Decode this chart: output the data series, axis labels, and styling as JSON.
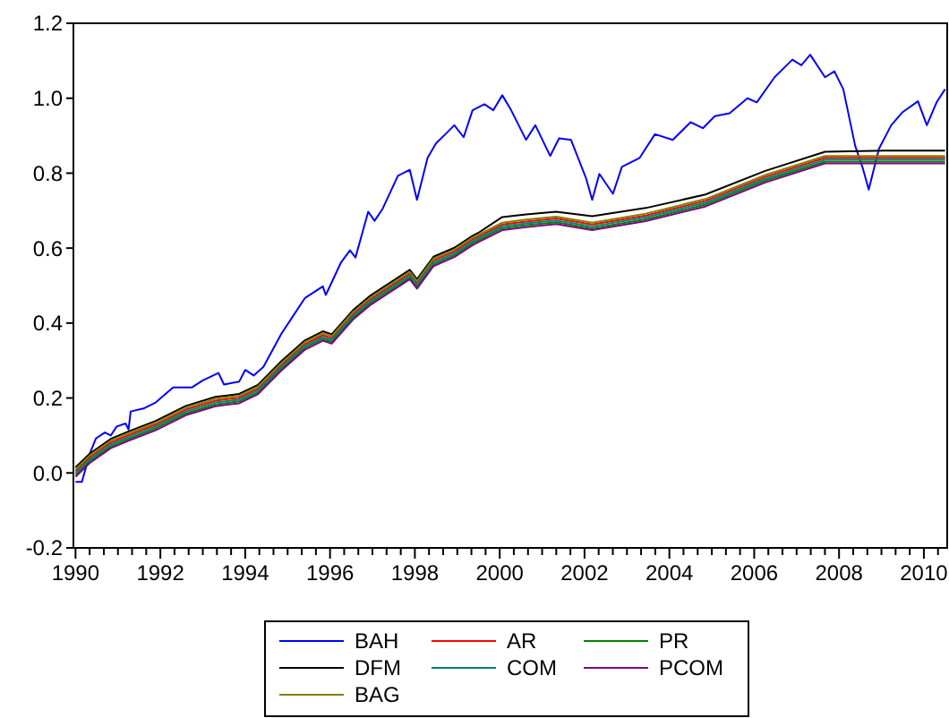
{
  "chart_data": {
    "type": "line",
    "xlim": [
      1989.95,
      2010.55
    ],
    "ylim": [
      -0.2,
      1.2
    ],
    "yticks": [
      -0.2,
      {
        "value": 0,
        "label": "0.0"
      },
      0.2,
      0.4,
      0.6,
      0.8,
      {
        "value": 1,
        "label": "1.0"
      },
      1.2
    ],
    "xticks": [
      1990,
      {
        "value": 1990.333,
        "label": null
      },
      {
        "value": 1990.667,
        "label": null
      },
      {
        "value": 1991,
        "label": null
      },
      {
        "value": 1991.333,
        "label": null
      },
      {
        "value": 1991.667,
        "label": null
      },
      1992,
      {
        "value": 1992.333,
        "label": null
      },
      {
        "value": 1992.667,
        "label": null
      },
      {
        "value": 1993,
        "label": null
      },
      {
        "value": 1993.333,
        "label": null
      },
      {
        "value": 1993.667,
        "label": null
      },
      1994,
      {
        "value": 1994.333,
        "label": null
      },
      {
        "value": 1994.667,
        "label": null
      },
      {
        "value": 1995,
        "label": null
      },
      {
        "value": 1995.333,
        "label": null
      },
      {
        "value": 1995.667,
        "label": null
      },
      1996,
      {
        "value": 1996.333,
        "label": null
      },
      {
        "value": 1996.667,
        "label": null
      },
      {
        "value": 1997,
        "label": null
      },
      {
        "value": 1997.333,
        "label": null
      },
      {
        "value": 1997.667,
        "label": null
      },
      1998,
      {
        "value": 1998.333,
        "label": null
      },
      {
        "value": 1998.667,
        "label": null
      },
      {
        "value": 1999,
        "label": null
      },
      {
        "value": 1999.333,
        "label": null
      },
      {
        "value": 1999.667,
        "label": null
      },
      2000,
      {
        "value": 2000.333,
        "label": null
      },
      {
        "value": 2000.667,
        "label": null
      },
      {
        "value": 2001,
        "label": null
      },
      {
        "value": 2001.333,
        "label": null
      },
      {
        "value": 2001.667,
        "label": null
      },
      2002,
      {
        "value": 2002.333,
        "label": null
      },
      {
        "value": 2002.667,
        "label": null
      },
      {
        "value": 2003,
        "label": null
      },
      {
        "value": 2003.333,
        "label": null
      },
      {
        "value": 2003.667,
        "label": null
      },
      2004,
      {
        "value": 2004.333,
        "label": null
      },
      {
        "value": 2004.667,
        "label": null
      },
      {
        "value": 2005,
        "label": null
      },
      {
        "value": 2005.333,
        "label": null
      },
      {
        "value": 2005.667,
        "label": null
      },
      2006,
      {
        "value": 2006.333,
        "label": null
      },
      {
        "value": 2006.667,
        "label": null
      },
      {
        "value": 2007,
        "label": null
      },
      {
        "value": 2007.333,
        "label": null
      },
      {
        "value": 2007.667,
        "label": null
      },
      2008,
      {
        "value": 2008.333,
        "label": null
      },
      {
        "value": 2008.667,
        "label": null
      },
      {
        "value": 2009,
        "label": null
      },
      {
        "value": 2009.333,
        "label": null
      },
      {
        "value": 2009.667,
        "label": null
      },
      2010,
      {
        "value": 2010.333,
        "label": null
      }
    ],
    "grid": false,
    "legend": "bottom",
    "marker": "none",
    "line_style": "solid",
    "series": [
      {
        "name": "BAH",
        "color": "#0000ff",
        "x": [
          1990.0,
          1990.15,
          1990.34,
          1990.48,
          1990.69,
          1990.83,
          1990.97,
          1991.18,
          1991.25,
          1991.3,
          1991.6,
          1991.89,
          1992.3,
          1992.74,
          1993.0,
          1993.37,
          1993.5,
          1993.86,
          1994.0,
          1994.2,
          1994.43,
          1994.85,
          1995.13,
          1995.41,
          1995.83,
          1995.9,
          1996.26,
          1996.47,
          1996.6,
          1996.9,
          1997.05,
          1997.24,
          1997.6,
          1997.88,
          1998.05,
          1998.3,
          1998.5,
          1998.72,
          1998.93,
          1999.15,
          1999.36,
          1999.64,
          1999.85,
          2000.06,
          2000.27,
          2000.62,
          2000.84,
          2001.19,
          2001.4,
          2001.68,
          2002.04,
          2002.18,
          2002.35,
          2002.67,
          2002.88,
          2003.3,
          2003.66,
          2004.08,
          2004.5,
          2004.79,
          2005.07,
          2005.42,
          2005.84,
          2006.06,
          2006.48,
          2006.9,
          2007.11,
          2007.32,
          2007.67,
          2007.89,
          2008.1,
          2008.38,
          2008.55,
          2008.7,
          2008.94,
          2009.23,
          2009.5,
          2009.86,
          2010.07,
          2010.3,
          2010.5
        ],
        "values": [
          -0.024,
          -0.024,
          0.053,
          0.092,
          0.108,
          0.1,
          0.124,
          0.132,
          0.116,
          0.164,
          0.172,
          0.188,
          0.228,
          0.228,
          0.247,
          0.267,
          0.236,
          0.244,
          0.275,
          0.26,
          0.283,
          0.371,
          0.419,
          0.467,
          0.498,
          0.475,
          0.562,
          0.594,
          0.575,
          0.697,
          0.673,
          0.705,
          0.793,
          0.809,
          0.729,
          0.841,
          0.88,
          0.904,
          0.928,
          0.896,
          0.968,
          0.984,
          0.968,
          1.008,
          0.968,
          0.889,
          0.928,
          0.846,
          0.893,
          0.889,
          0.785,
          0.729,
          0.798,
          0.745,
          0.817,
          0.841,
          0.904,
          0.889,
          0.936,
          0.92,
          0.952,
          0.96,
          1.0,
          0.989,
          1.056,
          1.103,
          1.088,
          1.116,
          1.056,
          1.072,
          1.024,
          0.873,
          0.817,
          0.756,
          0.865,
          0.928,
          0.963,
          0.992,
          0.928,
          0.989,
          1.024
        ]
      },
      {
        "name": "AR",
        "color": "#ff0000",
        "x": [
          1990.0,
          1990.34,
          1990.83,
          1991.25,
          1991.89,
          1992.6,
          1993.3,
          1993.86,
          1994.3,
          1994.85,
          1995.41,
          1995.83,
          1996.04,
          1996.54,
          1996.96,
          1997.38,
          1997.88,
          1998.05,
          1998.44,
          1998.93,
          1999.36,
          1999.5,
          2000.06,
          2000.62,
          2001.33,
          2002.18,
          2003.44,
          2004.85,
          2006.26,
          2007.67,
          2009.08,
          2010.5
        ],
        "values": [
          0.005,
          0.042,
          0.081,
          0.101,
          0.129,
          0.169,
          0.193,
          0.201,
          0.225,
          0.288,
          0.344,
          0.368,
          0.36,
          0.424,
          0.464,
          0.495,
          0.532,
          0.507,
          0.567,
          0.591,
          0.623,
          0.631,
          0.663,
          0.671,
          0.679,
          0.663,
          0.687,
          0.726,
          0.79,
          0.841,
          0.841,
          0.841
        ]
      },
      {
        "name": "PR",
        "color": "#008000",
        "x": [
          1990.0,
          1990.34,
          1990.83,
          1991.25,
          1991.89,
          1992.6,
          1993.3,
          1993.86,
          1994.3,
          1994.85,
          1995.41,
          1995.83,
          1996.04,
          1996.54,
          1996.96,
          1997.38,
          1997.88,
          1998.05,
          1998.44,
          1998.93,
          1999.36,
          1999.5,
          2000.06,
          2000.62,
          2001.33,
          2002.18,
          2003.44,
          2004.85,
          2006.26,
          2007.67,
          2009.08,
          2010.5
        ],
        "values": [
          -0.005,
          0.032,
          0.071,
          0.091,
          0.119,
          0.159,
          0.183,
          0.191,
          0.215,
          0.278,
          0.334,
          0.358,
          0.35,
          0.414,
          0.454,
          0.485,
          0.522,
          0.497,
          0.557,
          0.581,
          0.613,
          0.621,
          0.653,
          0.661,
          0.669,
          0.653,
          0.677,
          0.716,
          0.78,
          0.831,
          0.831,
          0.831
        ]
      },
      {
        "name": "DFM",
        "color": "#000000",
        "x": [
          1990.0,
          1990.34,
          1990.83,
          1991.25,
          1991.89,
          1992.6,
          1993.3,
          1993.86,
          1994.3,
          1994.85,
          1995.41,
          1995.83,
          1996.04,
          1996.54,
          1996.96,
          1997.38,
          1997.88,
          1998.05,
          1998.44,
          1998.93,
          1999.36,
          1999.5,
          2000.06,
          2000.62,
          2001.33,
          2002.18,
          2003.44,
          2004.85,
          2006.26,
          2007.67,
          2009.08,
          2010.5
        ],
        "values": [
          0.015,
          0.052,
          0.091,
          0.111,
          0.139,
          0.179,
          0.203,
          0.211,
          0.235,
          0.298,
          0.354,
          0.378,
          0.37,
          0.434,
          0.474,
          0.505,
          0.542,
          0.517,
          0.577,
          0.601,
          0.633,
          0.641,
          0.683,
          0.69,
          0.697,
          0.685,
          0.707,
          0.743,
          0.806,
          0.857,
          0.86,
          0.86
        ]
      },
      {
        "name": "COM",
        "color": "#008080",
        "x": [
          1990.0,
          1990.34,
          1990.83,
          1991.25,
          1991.89,
          1992.6,
          1993.3,
          1993.86,
          1994.3,
          1994.85,
          1995.41,
          1995.83,
          1996.04,
          1996.54,
          1996.96,
          1997.38,
          1997.88,
          1998.05,
          1998.44,
          1998.93,
          1999.36,
          1999.5,
          2000.06,
          2000.62,
          2001.33,
          2002.18,
          2003.44,
          2004.85,
          2006.26,
          2007.67,
          2009.08,
          2010.5
        ],
        "values": [
          0.0,
          0.037,
          0.076,
          0.096,
          0.124,
          0.164,
          0.188,
          0.196,
          0.22,
          0.283,
          0.339,
          0.363,
          0.355,
          0.419,
          0.459,
          0.49,
          0.527,
          0.502,
          0.562,
          0.586,
          0.618,
          0.626,
          0.658,
          0.666,
          0.674,
          0.658,
          0.682,
          0.721,
          0.785,
          0.836,
          0.836,
          0.836
        ]
      },
      {
        "name": "PCOM",
        "color": "#800080",
        "x": [
          1990.0,
          1990.34,
          1990.83,
          1991.25,
          1991.89,
          1992.6,
          1993.3,
          1993.86,
          1994.3,
          1994.85,
          1995.41,
          1995.83,
          1996.04,
          1996.54,
          1996.96,
          1997.38,
          1997.88,
          1998.05,
          1998.44,
          1998.93,
          1999.36,
          1999.5,
          2000.06,
          2000.62,
          2001.33,
          2002.18,
          2003.44,
          2004.85,
          2006.26,
          2007.67,
          2009.08,
          2010.5
        ],
        "values": [
          -0.01,
          0.027,
          0.066,
          0.086,
          0.114,
          0.154,
          0.178,
          0.186,
          0.21,
          0.273,
          0.329,
          0.353,
          0.345,
          0.409,
          0.449,
          0.48,
          0.517,
          0.492,
          0.552,
          0.576,
          0.608,
          0.616,
          0.648,
          0.656,
          0.664,
          0.648,
          0.672,
          0.711,
          0.775,
          0.826,
          0.826,
          0.826
        ]
      },
      {
        "name": "BAG",
        "color": "#808000",
        "x": [
          1990.0,
          1990.34,
          1990.83,
          1991.25,
          1991.89,
          1992.6,
          1993.3,
          1993.86,
          1994.3,
          1994.85,
          1995.41,
          1995.83,
          1996.04,
          1996.54,
          1996.96,
          1997.38,
          1997.88,
          1998.05,
          1998.44,
          1998.93,
          1999.36,
          1999.5,
          2000.06,
          2000.62,
          2001.33,
          2002.18,
          2003.44,
          2004.85,
          2006.26,
          2007.67,
          2009.08,
          2010.5
        ],
        "values": [
          0.01,
          0.047,
          0.086,
          0.106,
          0.134,
          0.174,
          0.198,
          0.206,
          0.23,
          0.293,
          0.349,
          0.373,
          0.365,
          0.429,
          0.469,
          0.5,
          0.537,
          0.512,
          0.572,
          0.596,
          0.628,
          0.636,
          0.668,
          0.676,
          0.684,
          0.668,
          0.692,
          0.731,
          0.795,
          0.846,
          0.846,
          0.846
        ]
      }
    ]
  }
}
